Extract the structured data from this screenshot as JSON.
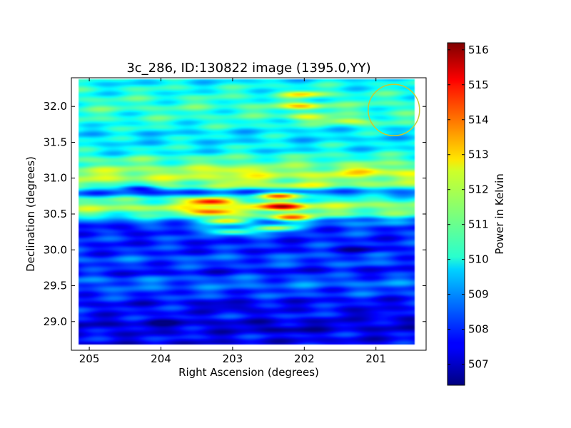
{
  "chart_data": {
    "type": "heatmap",
    "title": "3c_286, ID:130822 image (1395.0,YY)",
    "xlabel": "Right Ascension (degrees)",
    "ylabel": "Declination (degrees)",
    "colorbar_label": "Power in Kelvin",
    "colormap": "jet",
    "xlim": [
      205.25,
      200.3
    ],
    "ylim": [
      28.6,
      32.4
    ],
    "clim": [
      506.4,
      516.2
    ],
    "xticks": [
      205,
      204,
      203,
      202,
      201
    ],
    "yticks": [
      29.0,
      29.5,
      30.0,
      30.5,
      31.0,
      31.5,
      32.0
    ],
    "cticks": [
      507,
      508,
      509,
      510,
      511,
      512,
      513,
      514,
      515,
      516
    ],
    "xtick_labels": [
      "205",
      "204",
      "203",
      "202",
      "201"
    ],
    "ytick_labels": [
      "29.0",
      "29.5",
      "30.0",
      "30.5",
      "31.0",
      "31.5",
      "32.0"
    ],
    "ctick_labels": [
      "507",
      "508",
      "509",
      "510",
      "511",
      "512",
      "513",
      "514",
      "515",
      "516"
    ],
    "dec_profile": [
      {
        "dec": 32.35,
        "value": 510.0
      },
      {
        "dec": 32.2,
        "value": 510.3
      },
      {
        "dec": 32.0,
        "value": 510.6
      },
      {
        "dec": 31.8,
        "value": 510.4
      },
      {
        "dec": 31.6,
        "value": 509.8
      },
      {
        "dec": 31.4,
        "value": 510.0
      },
      {
        "dec": 31.2,
        "value": 511.0
      },
      {
        "dec": 31.05,
        "value": 511.8
      },
      {
        "dec": 30.9,
        "value": 511.2
      },
      {
        "dec": 30.8,
        "value": 508.6
      },
      {
        "dec": 30.7,
        "value": 510.6
      },
      {
        "dec": 30.6,
        "value": 511.6
      },
      {
        "dec": 30.5,
        "value": 510.8
      },
      {
        "dec": 30.4,
        "value": 508.8
      },
      {
        "dec": 30.3,
        "value": 508.2
      },
      {
        "dec": 30.2,
        "value": 508.0
      },
      {
        "dec": 30.0,
        "value": 507.9
      },
      {
        "dec": 29.85,
        "value": 508.4
      },
      {
        "dec": 29.7,
        "value": 507.7
      },
      {
        "dec": 29.55,
        "value": 508.6
      },
      {
        "dec": 29.4,
        "value": 508.2
      },
      {
        "dec": 29.25,
        "value": 507.6
      },
      {
        "dec": 29.1,
        "value": 507.8
      },
      {
        "dec": 28.95,
        "value": 507.2
      },
      {
        "dec": 28.8,
        "value": 507.6
      },
      {
        "dec": 28.65,
        "value": 507.4
      }
    ],
    "hot_spots": [
      {
        "ra": 203.3,
        "dec": 30.67,
        "value": 515.5
      },
      {
        "ra": 203.3,
        "dec": 30.53,
        "value": 515.0
      },
      {
        "ra": 202.3,
        "dec": 30.6,
        "value": 515.5
      },
      {
        "ra": 202.2,
        "dec": 30.45,
        "value": 514.0
      },
      {
        "ra": 202.35,
        "dec": 30.75,
        "value": 513.5
      },
      {
        "ra": 203.1,
        "dec": 30.4,
        "value": 513.0
      },
      {
        "ra": 203.0,
        "dec": 30.25,
        "value": 512.0
      },
      {
        "ra": 202.4,
        "dec": 30.3,
        "value": 512.0
      },
      {
        "ra": 203.0,
        "dec": 31.1,
        "value": 513.0
      },
      {
        "ra": 202.9,
        "dec": 30.95,
        "value": 512.3
      },
      {
        "ra": 202.0,
        "dec": 32.0,
        "value": 513.0
      },
      {
        "ra": 202.0,
        "dec": 32.17,
        "value": 512.5
      },
      {
        "ra": 202.0,
        "dec": 31.85,
        "value": 512.0
      },
      {
        "ra": 201.4,
        "dec": 31.8,
        "value": 512.5
      },
      {
        "ra": 201.1,
        "dec": 31.1,
        "value": 513.0
      },
      {
        "ra": 202.1,
        "dec": 30.9,
        "value": 512.0
      }
    ],
    "cold_spots": [
      {
        "ra": 204.3,
        "dec": 30.85,
        "value": 507.2
      },
      {
        "ra": 204.6,
        "dec": 30.3,
        "value": 507.0
      },
      {
        "ra": 203.0,
        "dec": 29.2,
        "value": 506.6
      },
      {
        "ra": 202.3,
        "dec": 28.9,
        "value": 506.5
      },
      {
        "ra": 204.0,
        "dec": 29.0,
        "value": 506.8
      },
      {
        "ra": 201.0,
        "dec": 29.1,
        "value": 506.9
      },
      {
        "ra": 201.2,
        "dec": 30.0,
        "value": 507.0
      }
    ],
    "beam_marker": {
      "ra": 200.75,
      "dec": 31.95,
      "color": "#c8c832"
    }
  }
}
